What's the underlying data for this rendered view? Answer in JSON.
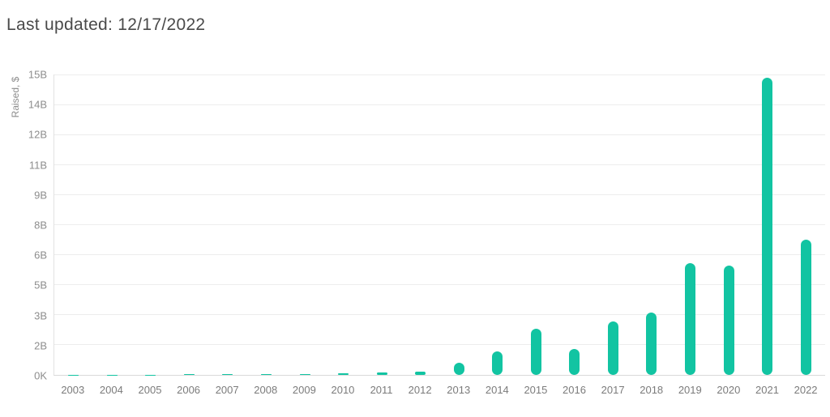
{
  "header": {
    "title": "Last updated: 12/17/2022"
  },
  "colors": {
    "bar": "#12C4A2",
    "gridline": "#EDEDED",
    "axis_line": "#D9D9D9",
    "title_text": "#4A4A4A",
    "tick_text": "#8D8D8D"
  },
  "chart_data": {
    "type": "bar",
    "title": "Last updated: 12/17/2022",
    "xlabel": "",
    "ylabel": "Raised, $",
    "unit": "USD billions",
    "categories": [
      "2003",
      "2004",
      "2005",
      "2006",
      "2007",
      "2008",
      "2009",
      "2010",
      "2011",
      "2012",
      "2013",
      "2014",
      "2015",
      "2016",
      "2017",
      "2018",
      "2019",
      "2020",
      "2021",
      "2022"
    ],
    "values": [
      0.02,
      0.005,
      0.02,
      0.03,
      0.05,
      0.05,
      0.05,
      0.08,
      0.12,
      0.17,
      0.6,
      1.17,
      2.3,
      1.28,
      2.65,
      3.12,
      5.6,
      5.45,
      14.85,
      6.75
    ],
    "ylim": [
      0,
      15
    ],
    "yticks": [
      {
        "label": "15B",
        "value": 15
      },
      {
        "label": "14B",
        "value": 13.5
      },
      {
        "label": "12B",
        "value": 12
      },
      {
        "label": "11B",
        "value": 10.5
      },
      {
        "label": "9B",
        "value": 9
      },
      {
        "label": "8B",
        "value": 7.5
      },
      {
        "label": "6B",
        "value": 6
      },
      {
        "label": "5B",
        "value": 4.5
      },
      {
        "label": "3B",
        "value": 3
      },
      {
        "label": "2B",
        "value": 1.5
      },
      {
        "label": "0K",
        "value": 0
      }
    ],
    "grid": true,
    "legend": "none"
  }
}
